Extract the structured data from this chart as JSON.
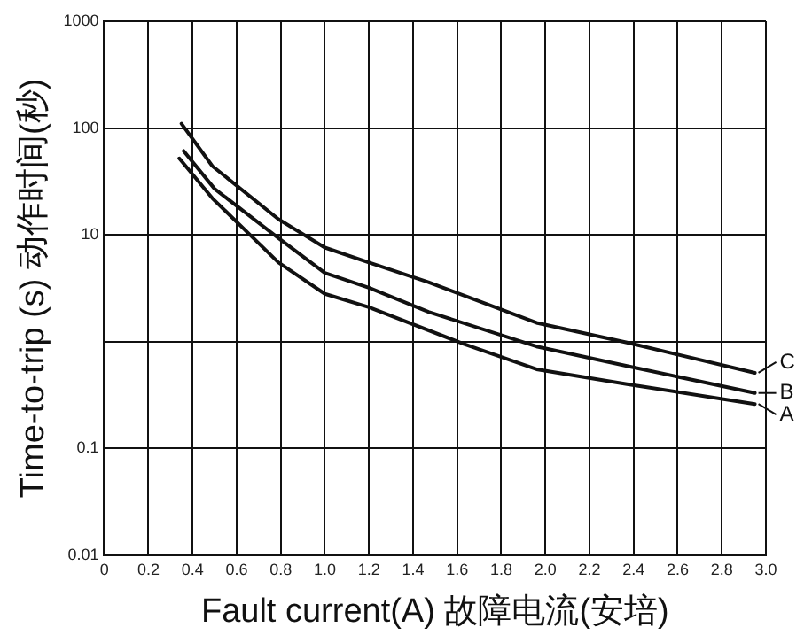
{
  "chart_data": {
    "type": "line",
    "xlabel": "Fault current(A) 故障电流(安培)",
    "ylabel": "Time-to-trip (s) 动作时间(秒)",
    "log": "y",
    "grid": true,
    "legend": "right",
    "marker": "none",
    "line_style": "solid",
    "xlim": [
      0,
      3
    ],
    "ylim": [
      0.01,
      1000
    ],
    "xticks": [
      0,
      0.2,
      0.4,
      0.6,
      0.8,
      {
        "value": 1,
        "label": "1.0"
      },
      1.2,
      1.4,
      1.6,
      1.8,
      {
        "value": 2,
        "label": "2.0"
      },
      2.2,
      2.4,
      2.6,
      2.8,
      {
        "value": 3,
        "label": "3.0"
      }
    ],
    "yticks": [
      0.01,
      0.1,
      {
        "value": 1,
        "label": null
      },
      10,
      100,
      1000
    ],
    "series": [
      {
        "name": "C",
        "color": "#111111",
        "x": [
          0.35,
          0.49,
          0.79,
          1.0,
          1.2,
          1.47,
          1.96,
          2.37,
          2.95
        ],
        "values": [
          110,
          44,
          14,
          7.6,
          5.5,
          3.6,
          1.5,
          0.98,
          0.51
        ]
      },
      {
        "name": "B",
        "color": "#111111",
        "x": [
          0.36,
          0.5,
          0.79,
          1.0,
          1.2,
          1.47,
          1.96,
          2.37,
          2.95
        ],
        "values": [
          61,
          27,
          9.3,
          4.4,
          3.2,
          1.9,
          0.9,
          0.59,
          0.33
        ]
      },
      {
        "name": "A",
        "color": "#111111",
        "x": [
          0.34,
          0.49,
          0.79,
          1.0,
          1.2,
          1.63,
          1.96,
          2.37,
          2.95
        ],
        "values": [
          52,
          22,
          5.5,
          2.8,
          2.1,
          0.95,
          0.55,
          0.4,
          0.26
        ]
      }
    ]
  }
}
